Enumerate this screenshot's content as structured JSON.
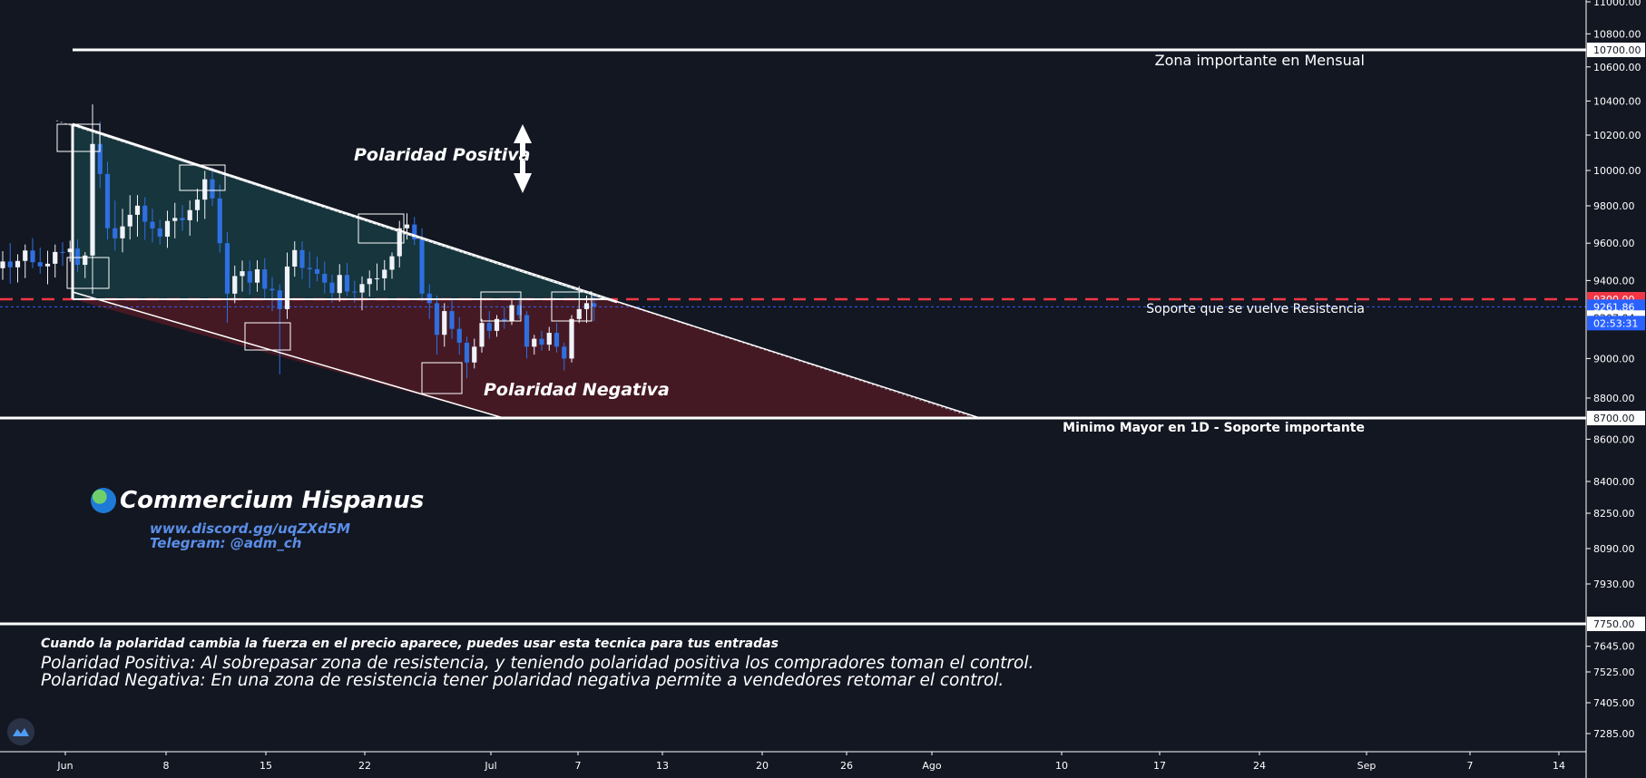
{
  "chart_data": {
    "type": "candlestick",
    "x_tick_labels": [
      "Jun",
      "8",
      "15",
      "22",
      "Jul",
      "7",
      "13",
      "20",
      "26",
      "Ago",
      "10",
      "17",
      "24",
      "Sep",
      "7",
      "14"
    ],
    "y_tick_labels": [
      "11000.00",
      "10800.00",
      "10600.00",
      "10400.00",
      "10200.00",
      "10000.00",
      "9800.00",
      "9600.00",
      "9400.00",
      "9000.00",
      "8800.00",
      "8600.00",
      "8400.00",
      "8250.00",
      "8090.00",
      "7930.00",
      "7645.00",
      "7525.00",
      "7405.00",
      "7285.00"
    ],
    "ylim": [
      7200,
      11050
    ],
    "price_levels": [
      {
        "value": 10700,
        "label": "10700.00"
      },
      {
        "value": 9300,
        "label": "9300.00",
        "color": "#f23645"
      },
      {
        "value": 9261.86,
        "label": "9261.86",
        "color": "#2962ff"
      },
      {
        "value": 9207.04,
        "label": "9207.04"
      },
      {
        "value": 8700,
        "label": "8700.00"
      },
      {
        "value": 7750,
        "label": "7750.00"
      }
    ],
    "countdown": "02:53:31",
    "annotations": {
      "zona_mensual": "Zona importante en Mensual",
      "soporte_resistencia": "Soporte que se vuelve Resistencia",
      "minimo_mayor": "Minimo Mayor en 1D - Soporte importante",
      "polaridad_positiva": "Polaridad Positiva",
      "polaridad_negativa": "Polaridad Negativa"
    },
    "candles": [
      [
        9466,
        9557,
        9404,
        9502
      ],
      [
        9502,
        9601,
        9383,
        9471
      ],
      [
        9471,
        9541,
        9390,
        9505
      ],
      [
        9505,
        9593,
        9413,
        9561
      ],
      [
        9561,
        9627,
        9466,
        9498
      ],
      [
        9498,
        9577,
        9436,
        9476
      ],
      [
        9476,
        9560,
        9380,
        9490
      ],
      [
        9490,
        9593,
        9416,
        9553
      ],
      [
        9553,
        9605,
        9479,
        9552
      ],
      [
        9552,
        9614,
        9501,
        9571
      ],
      [
        9571,
        9620,
        9446,
        9484
      ],
      [
        9484,
        9552,
        9413,
        9534
      ],
      [
        9534,
        10380,
        9330,
        10150
      ],
      [
        10150,
        10280,
        9900,
        9980
      ],
      [
        9980,
        10050,
        9620,
        9680
      ],
      [
        9680,
        9830,
        9560,
        9626
      ],
      [
        9626,
        9784,
        9551,
        9690
      ],
      [
        9690,
        9860,
        9620,
        9752
      ],
      [
        9752,
        9861,
        9635,
        9801
      ],
      [
        9801,
        9849,
        9618,
        9715
      ],
      [
        9715,
        9784,
        9604,
        9679
      ],
      [
        9679,
        9725,
        9593,
        9635
      ],
      [
        9635,
        9774,
        9575,
        9719
      ],
      [
        9719,
        9817,
        9626,
        9735
      ],
      [
        9735,
        9804,
        9665,
        9723
      ],
      [
        9723,
        9830,
        9640,
        9777
      ],
      [
        9777,
        9897,
        9715,
        9835
      ],
      [
        9835,
        9998,
        9730,
        9950
      ],
      [
        9950,
        10015,
        9799,
        9842
      ],
      [
        9842,
        9920,
        9550,
        9600
      ],
      [
        9600,
        9660,
        9180,
        9330
      ],
      [
        9330,
        9480,
        9280,
        9424
      ],
      [
        9424,
        9507,
        9341,
        9450
      ],
      [
        9450,
        9507,
        9325,
        9389
      ],
      [
        9389,
        9508,
        9340,
        9460
      ],
      [
        9460,
        9520,
        9303,
        9356
      ],
      [
        9356,
        9420,
        9240,
        9347
      ],
      [
        9347,
        9380,
        8920,
        9250
      ],
      [
        9250,
        9550,
        9200,
        9475
      ],
      [
        9475,
        9610,
        9421,
        9563
      ],
      [
        9563,
        9610,
        9408,
        9468
      ],
      [
        9468,
        9555,
        9361,
        9461
      ],
      [
        9461,
        9529,
        9396,
        9436
      ],
      [
        9436,
        9502,
        9330,
        9389
      ],
      [
        9389,
        9431,
        9283,
        9333
      ],
      [
        9333,
        9488,
        9288,
        9430
      ],
      [
        9430,
        9494,
        9317,
        9341
      ],
      [
        9341,
        9399,
        9283,
        9336
      ],
      [
        9336,
        9422,
        9244,
        9381
      ],
      [
        9381,
        9454,
        9314,
        9411
      ],
      [
        9411,
        9491,
        9347,
        9412
      ],
      [
        9412,
        9509,
        9348,
        9458
      ],
      [
        9458,
        9550,
        9410,
        9530
      ],
      [
        9530,
        9720,
        9470,
        9680
      ],
      [
        9680,
        9760,
        9620,
        9700
      ],
      [
        9700,
        9740,
        9590,
        9620
      ],
      [
        9620,
        9680,
        9290,
        9330
      ],
      [
        9330,
        9380,
        9200,
        9280
      ],
      [
        9280,
        9320,
        9020,
        9120
      ],
      [
        9120,
        9280,
        9060,
        9240
      ],
      [
        9240,
        9300,
        9100,
        9150
      ],
      [
        9150,
        9210,
        9020,
        9080
      ],
      [
        9080,
        9110,
        8900,
        8980
      ],
      [
        8980,
        9100,
        8950,
        9060
      ],
      [
        9060,
        9200,
        9030,
        9180
      ],
      [
        9180,
        9240,
        9100,
        9140
      ],
      [
        9140,
        9220,
        9110,
        9200
      ],
      [
        9200,
        9260,
        9150,
        9190
      ],
      [
        9190,
        9300,
        9170,
        9270
      ],
      [
        9270,
        9310,
        9200,
        9220
      ],
      [
        9220,
        9240,
        9000,
        9060
      ],
      [
        9060,
        9120,
        9020,
        9100
      ],
      [
        9100,
        9140,
        9040,
        9070
      ],
      [
        9070,
        9160,
        9040,
        9130
      ],
      [
        9130,
        9180,
        9030,
        9060
      ],
      [
        9060,
        9080,
        8940,
        9000
      ],
      [
        9000,
        9220,
        8980,
        9200
      ],
      [
        9200,
        9370,
        9180,
        9250
      ],
      [
        9250,
        9320,
        9180,
        9280
      ],
      [
        9280,
        9320,
        9190,
        9262
      ]
    ]
  }
}
